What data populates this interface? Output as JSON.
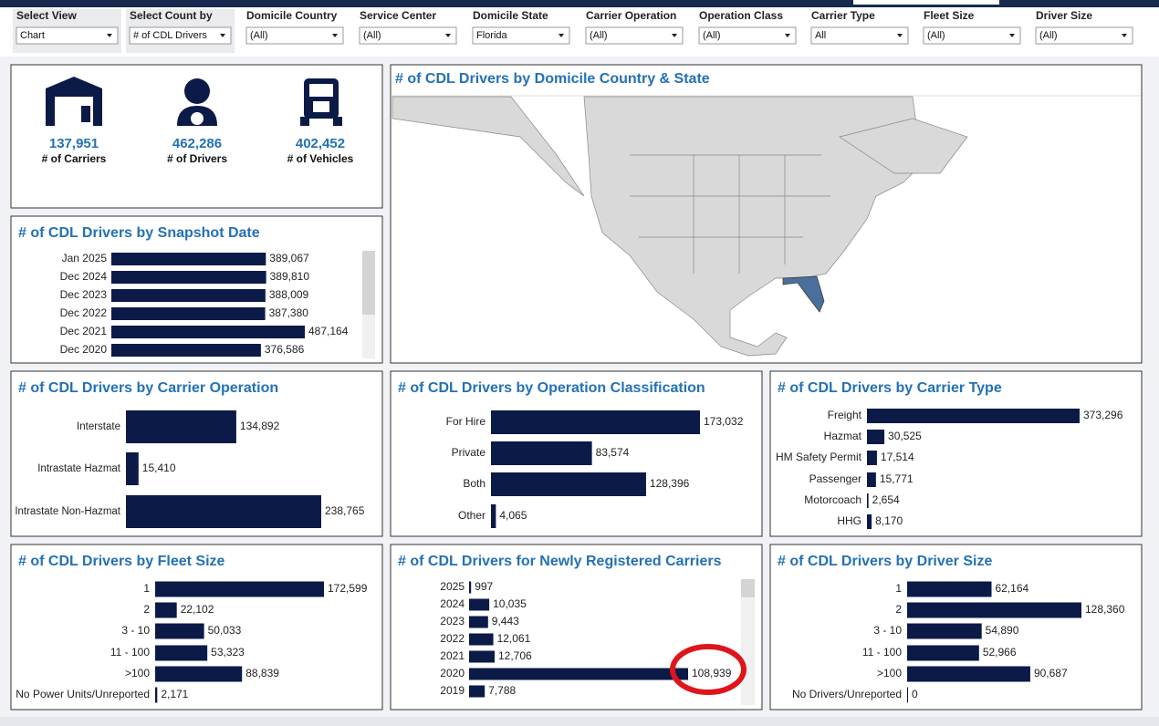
{
  "filters": [
    {
      "label": "Select View",
      "value": "Chart"
    },
    {
      "label": "Select Count by",
      "value": "# of CDL Drivers"
    },
    {
      "label": "Domicile Country",
      "value": "(All)"
    },
    {
      "label": "Service Center",
      "value": "(All)"
    },
    {
      "label": "Domicile State",
      "value": "Florida"
    },
    {
      "label": "Carrier Operation",
      "value": "(All)"
    },
    {
      "label": "Operation Class",
      "value": "(All)"
    },
    {
      "label": "Carrier Type",
      "value": "All"
    },
    {
      "label": "Fleet Size",
      "value": "(All)"
    },
    {
      "label": "Driver Size",
      "value": "(All)"
    }
  ],
  "kpis": [
    {
      "value": "137,951",
      "label": "# of Carriers"
    },
    {
      "value": "462,286",
      "label": "# of Drivers"
    },
    {
      "value": "402,452",
      "label": "# of Vehicles"
    }
  ],
  "map": {
    "title": "# of CDL Drivers by Domicile Country & State"
  },
  "chart_data": [
    {
      "type": "bar",
      "title": "# of CDL Drivers by Snapshot Date",
      "color": "#0b1a47",
      "categories": [
        "Jan 2025",
        "Dec 2024",
        "Dec 2023",
        "Dec 2022",
        "Dec 2021",
        "Dec 2020"
      ],
      "values": [
        389067,
        389810,
        388009,
        387380,
        487164,
        376586
      ],
      "value_labels": [
        "389,067",
        "389,810",
        "388,009",
        "387,380",
        "487,164",
        "376,586"
      ]
    },
    {
      "type": "bar",
      "title": "# of CDL Drivers by Carrier Operation",
      "color": "#0b1a47",
      "categories": [
        "Interstate",
        "Intrastate Hazmat",
        "Intrastate Non-Hazmat"
      ],
      "values": [
        134892,
        15410,
        238765
      ],
      "value_labels": [
        "134,892",
        "15,410",
        "238,765"
      ]
    },
    {
      "type": "bar",
      "title": "# of CDL Drivers by Operation Classification",
      "color": "#0b1a47",
      "categories": [
        "For Hire",
        "Private",
        "Both",
        "Other"
      ],
      "values": [
        173032,
        83574,
        128396,
        4065
      ],
      "value_labels": [
        "173,032",
        "83,574",
        "128,396",
        "4,065"
      ]
    },
    {
      "type": "bar",
      "title": "# of CDL Drivers by Carrier Type",
      "color": "#0b1a47",
      "categories": [
        "Freight",
        "Hazmat",
        "HM Safety Permit",
        "Passenger",
        "Motorcoach",
        "HHG"
      ],
      "values": [
        373296,
        30525,
        17514,
        15771,
        2654,
        8170
      ],
      "value_labels": [
        "373,296",
        "30,525",
        "17,514",
        "15,771",
        "2,654",
        "8,170"
      ]
    },
    {
      "type": "bar",
      "title": "# of CDL Drivers by Fleet Size",
      "color": "#0b1a47",
      "categories": [
        "1",
        "2",
        "3 - 10",
        "11 - 100",
        ">100",
        "No Power Units/Unreported"
      ],
      "values": [
        172599,
        22102,
        50033,
        53323,
        88839,
        2171
      ],
      "value_labels": [
        "172,599",
        "22,102",
        "50,033",
        "53,323",
        "88,839",
        "2,171"
      ]
    },
    {
      "type": "bar",
      "title": "# of CDL Drivers for Newly Registered Carriers",
      "color": "#0b1a47",
      "categories": [
        "2025",
        "2024",
        "2023",
        "2022",
        "2021",
        "2020",
        "2019"
      ],
      "values": [
        997,
        10035,
        9443,
        12061,
        12706,
        108939,
        7788
      ],
      "value_labels": [
        "997",
        "10,035",
        "9,443",
        "12,061",
        "12,706",
        "108,939",
        "7,788"
      ]
    },
    {
      "type": "bar",
      "title": "# of CDL Drivers by Driver Size",
      "color": "#0b1a47",
      "categories": [
        "1",
        "2",
        "3 - 10",
        "11 - 100",
        ">100",
        "No Drivers/Unreported"
      ],
      "values": [
        62164,
        128360,
        54890,
        52966,
        90687,
        0
      ],
      "value_labels": [
        "62,164",
        "128,360",
        "54,890",
        "52,966",
        "90,687",
        "0"
      ]
    }
  ]
}
